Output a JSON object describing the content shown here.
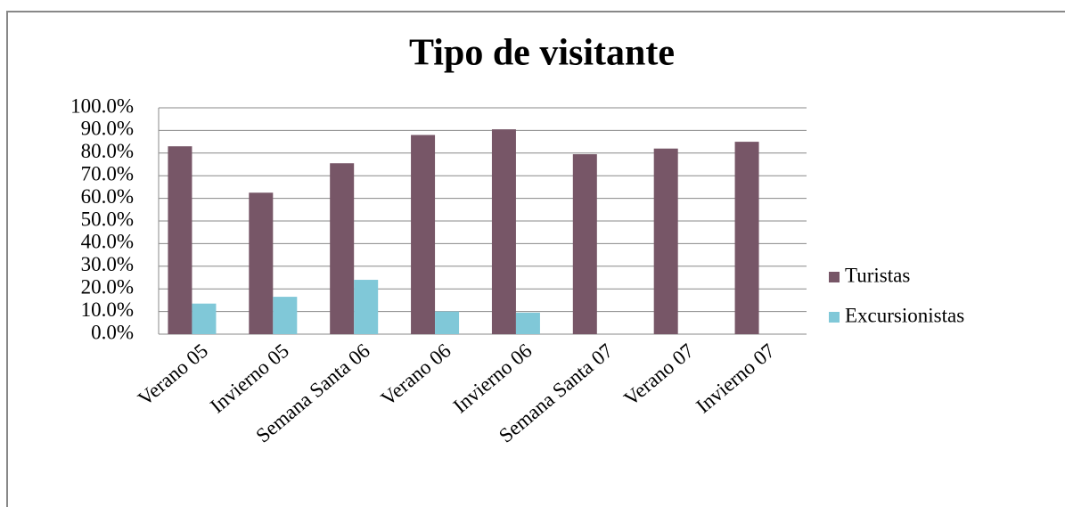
{
  "chart_data": {
    "type": "bar",
    "title": "Tipo de visitante",
    "categories": [
      "Verano 05",
      "Invierno 05",
      "Semana Santa 06",
      "Verano 06",
      "Invierno 06",
      "Semana Santa 07",
      "Verano 07",
      "Invierno 07"
    ],
    "series": [
      {
        "name": "Turistas",
        "color": "#775667",
        "values": [
          83,
          62.5,
          75.5,
          88,
          90.5,
          79.5,
          82,
          85
        ]
      },
      {
        "name": "Excursionistas",
        "color": "#80c8d8",
        "values": [
          13.5,
          16.5,
          24,
          10,
          9.5,
          null,
          null,
          null
        ]
      }
    ],
    "ylim": [
      0,
      100
    ],
    "yticks": [
      {
        "value": 0,
        "label": "0.0%"
      },
      {
        "value": 10,
        "label": "10.0%"
      },
      {
        "value": 20,
        "label": "20.0%"
      },
      {
        "value": 30,
        "label": "30.0%"
      },
      {
        "value": 40,
        "label": "40.0%"
      },
      {
        "value": 50,
        "label": "50.0%"
      },
      {
        "value": 60,
        "label": "60.0%"
      },
      {
        "value": 70,
        "label": "70.0%"
      },
      {
        "value": 80,
        "label": "80.0%"
      },
      {
        "value": 90,
        "label": "90.0%"
      },
      {
        "value": 100,
        "label": "100.0%"
      }
    ],
    "grid": true,
    "legend": "right"
  }
}
